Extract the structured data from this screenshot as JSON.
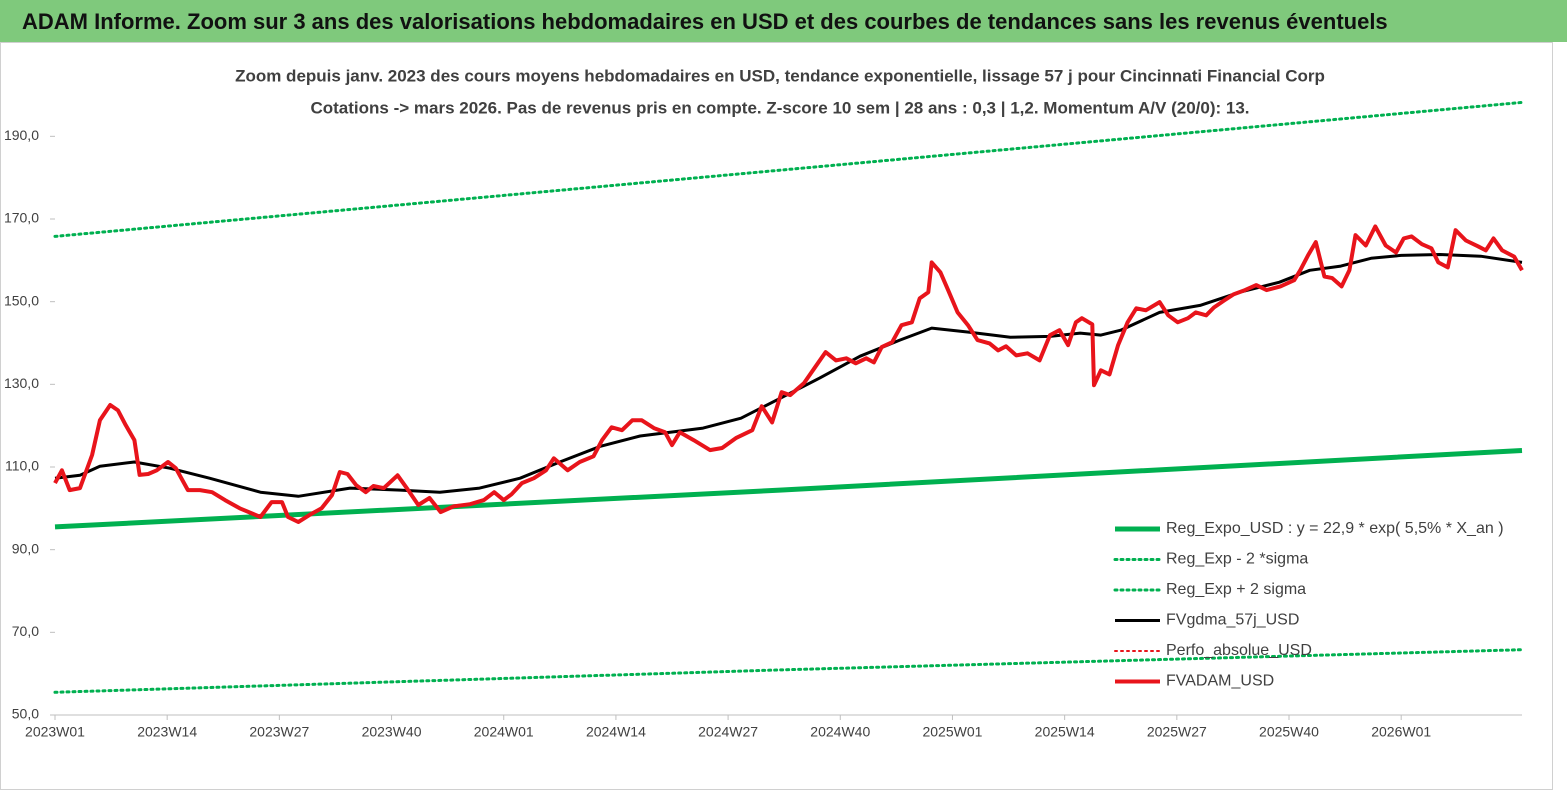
{
  "header": {
    "title": "ADAM Informe. Zoom sur 3 ans des valorisations hebdomadaires en USD et des courbes de tendances sans les revenus éventuels"
  },
  "chart_data": {
    "type": "line",
    "title": "Zoom depuis janv. 2023 des cours moyens hebdomadaires en USD, tendance exponentielle, lissage 57 j pour Cincinnati Financial Corp",
    "subtitle": "Cotations -> mars 2026. Pas de revenus pris en compte. Z-score 10 sem  | 28 ans : 0,3 | 1,2. Momentum A/V (20/0): 13.",
    "xlim": [
      0,
      170
    ],
    "xticks": [
      {
        "value": 0,
        "label": "2023W01"
      },
      {
        "value": 13,
        "label": "2023W14"
      },
      {
        "value": 26,
        "label": "2023W27"
      },
      {
        "value": 39,
        "label": "2023W40"
      },
      {
        "value": 52,
        "label": "2024W01"
      },
      {
        "value": 65,
        "label": "2024W14"
      },
      {
        "value": 78,
        "label": "2024W27"
      },
      {
        "value": 91,
        "label": "2024W40"
      },
      {
        "value": 104,
        "label": "2025W01"
      },
      {
        "value": 117,
        "label": "2025W14"
      },
      {
        "value": 130,
        "label": "2025W27"
      },
      {
        "value": 143,
        "label": "2025W40"
      },
      {
        "value": 156,
        "label": "2026W01"
      }
    ],
    "ylim": [
      50,
      200
    ],
    "yticks": [
      {
        "value": 50,
        "label": "50,0"
      },
      {
        "value": 70,
        "label": "70,0"
      },
      {
        "value": 90,
        "label": "90,0"
      },
      {
        "value": 110,
        "label": "110,0"
      },
      {
        "value": 130,
        "label": "130,0"
      },
      {
        "value": 150,
        "label": "150,0"
      },
      {
        "value": 170,
        "label": "170,0"
      },
      {
        "value": 190,
        "label": "190,0"
      }
    ],
    "grid": false,
    "legend": "lower-right",
    "series": [
      {
        "name": "Reg_Expo_USD : y = 22,9 * exp( 5,5% *  X_an )",
        "color": "#00b050",
        "style": "solid",
        "width": 5,
        "x": [
          0,
          84,
          170
        ],
        "values": [
          95.5,
          104.4,
          114
        ]
      },
      {
        "name": "Reg_Exp - 2 *sigma",
        "color": "#00b050",
        "style": "dotted",
        "width": 3,
        "x": [
          0,
          84,
          170
        ],
        "values": [
          55.5,
          60.9,
          65.8
        ]
      },
      {
        "name": "Reg_Exp + 2 sigma",
        "color": "#00b050",
        "style": "dotted",
        "width": 3,
        "x": [
          0,
          84,
          170
        ],
        "values": [
          165.8,
          181.8,
          198.2
        ]
      },
      {
        "name": "FVgdma_57j_USD",
        "color": "#000000",
        "style": "solid",
        "width": 3,
        "x": [
          0,
          2.9,
          5.2,
          9.2,
          13.3,
          17.9,
          23.8,
          28.2,
          34.2,
          40,
          44.6,
          49.2,
          53.9,
          58.5,
          63.2,
          67.8,
          75.1,
          79.5,
          84,
          88.6,
          93.3,
          97.9,
          101.6,
          106,
          110.7,
          115.3,
          118.8,
          121.2,
          123.5,
          128,
          132.7,
          137.3,
          141.9,
          145.4,
          149,
          152.5,
          156,
          160.5,
          165.2,
          170
        ],
        "values": [
          107.3,
          108,
          110.2,
          111.2,
          109.7,
          107.3,
          103.9,
          102.9,
          104.9,
          104.4,
          103.9,
          104.9,
          107.3,
          111.2,
          115,
          117.5,
          119.4,
          121.8,
          126.6,
          131.5,
          136.8,
          140.7,
          143.6,
          142.6,
          141.4,
          141.6,
          142.4,
          141.9,
          143.1,
          147.4,
          149.1,
          152.3,
          154.7,
          157.6,
          158.6,
          160.5,
          161.2,
          161.4,
          161,
          159.5
        ]
      },
      {
        "name": "Perfo_absolue_USD",
        "color": "#e8141b",
        "style": "dotted",
        "width": 2,
        "x": [],
        "values": []
      },
      {
        "name": "FVADAM_USD",
        "color": "#e8141b",
        "style": "solid",
        "width": 4,
        "x": [
          0,
          0.8,
          1.7,
          2.9,
          4.3,
          5.2,
          6.4,
          7.3,
          8.2,
          9.2,
          9.8,
          10.8,
          11.8,
          13.1,
          14,
          15.4,
          16.8,
          18.2,
          19.7,
          21.4,
          23.8,
          25.1,
          26.3,
          27,
          28.2,
          29.5,
          30.9,
          32.1,
          33,
          33.9,
          34.9,
          36,
          36.9,
          38.1,
          39.7,
          40.7,
          42.1,
          43.4,
          44.7,
          46.2,
          48.1,
          49.7,
          50.9,
          52,
          52.9,
          54.1,
          55.5,
          56.9,
          57.8,
          59.4,
          60.8,
          62.4,
          63.4,
          64.5,
          65.7,
          66.9,
          68,
          69.4,
          70.7,
          71.5,
          72.4,
          74,
          75.9,
          77.3,
          78.9,
          80.8,
          81.9,
          83.1,
          84.2,
          85.2,
          86.8,
          88,
          89.3,
          90.5,
          91.7,
          92.8,
          94,
          94.9,
          95.8,
          97,
          98.1,
          99.3,
          100.2,
          101.2,
          101.6,
          102.6,
          103.5,
          104.6,
          105.8,
          106.9,
          108.3,
          109.3,
          110.2,
          111.4,
          112.7,
          114.1,
          115.3,
          116.4,
          117.4,
          118.3,
          119,
          120.2,
          120.4,
          121.2,
          122.2,
          123.2,
          124.3,
          125.3,
          126.4,
          128,
          129,
          130.1,
          131.3,
          132.2,
          133.4,
          134.3,
          135.5,
          136.6,
          137.9,
          139.2,
          140.4,
          142,
          143.6,
          144.3,
          145.2,
          146.1,
          147.1,
          148,
          149.1,
          150,
          150.7,
          151.9,
          153,
          154.2,
          155.4,
          156.3,
          157.2,
          158.4,
          159.5,
          160.3,
          161.4,
          162.3,
          163.5,
          164.9,
          165.8,
          166.7,
          167.7,
          169.1,
          170
        ],
        "values": [
          106.1,
          109.2,
          104.4,
          104.9,
          112.9,
          121.3,
          125,
          123.7,
          120.1,
          116.5,
          108.1,
          108.3,
          109.2,
          111.2,
          109.7,
          104.4,
          104.4,
          103.9,
          102,
          100,
          97.9,
          101.5,
          101.5,
          97.9,
          96.7,
          98.4,
          100,
          103.2,
          108.8,
          108.3,
          105.6,
          103.9,
          105.4,
          104.9,
          108,
          105.1,
          100.8,
          102.5,
          99.1,
          100.5,
          101,
          102,
          103.9,
          102,
          103.4,
          106.1,
          107.3,
          109.2,
          112.1,
          109.2,
          111.2,
          112.6,
          116.5,
          119.6,
          118.9,
          121.3,
          121.3,
          119.4,
          118.4,
          115.3,
          118.4,
          116.5,
          114.1,
          114.6,
          117,
          118.9,
          124.7,
          120.8,
          128.1,
          127.4,
          130.3,
          133.9,
          137.8,
          135.8,
          136.3,
          135.1,
          136.3,
          135.3,
          139,
          140.2,
          144.3,
          145,
          150.8,
          152.3,
          159.5,
          157.1,
          152.8,
          147.4,
          144.3,
          140.7,
          139.9,
          138.2,
          139.2,
          137,
          137.5,
          135.8,
          141.9,
          143.1,
          139.5,
          145,
          146,
          144.5,
          129.8,
          133.4,
          132.4,
          139.5,
          145,
          148.4,
          147.9,
          149.9,
          146.7,
          145,
          146,
          147.4,
          146.7,
          148.6,
          150.3,
          151.8,
          152.8,
          154,
          152.8,
          153.7,
          155.2,
          157.6,
          161.2,
          164.4,
          156.1,
          155.7,
          153.7,
          157.6,
          166.1,
          163.6,
          168.2,
          163.6,
          161.9,
          165.3,
          165.8,
          163.9,
          162.9,
          159.5,
          158.3,
          167.3,
          164.8,
          163.4,
          162.4,
          165.3,
          162.4,
          160.9,
          157.6
        ]
      }
    ]
  }
}
